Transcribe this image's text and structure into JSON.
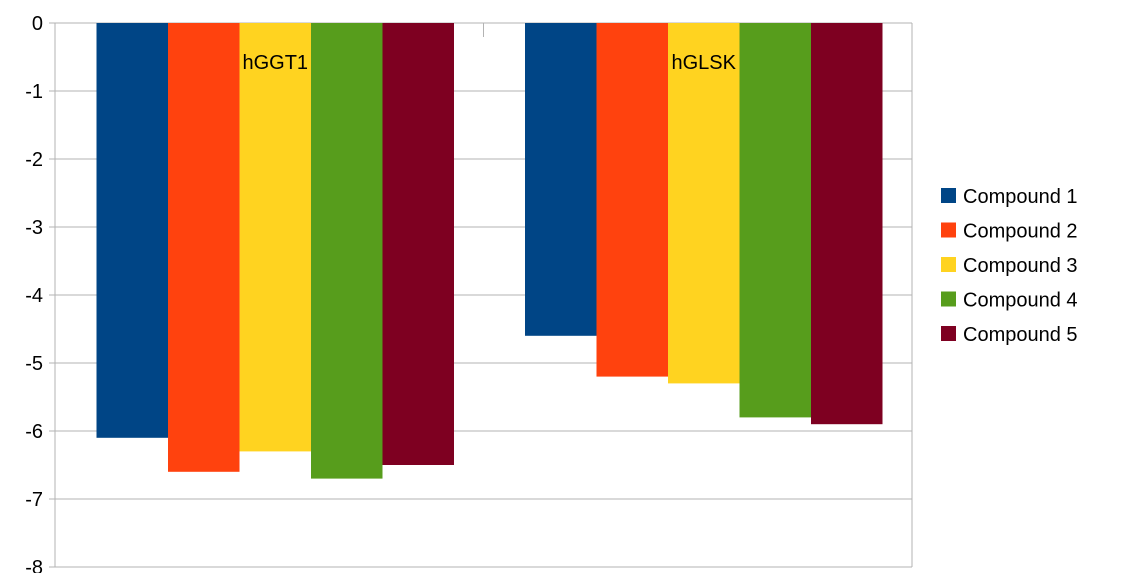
{
  "chart_data": {
    "type": "bar",
    "categories": [
      "hGGT1",
      "hGLSK"
    ],
    "series": [
      {
        "name": "Compound 1",
        "color": "#004586",
        "values": [
          -6.1,
          -4.6
        ]
      },
      {
        "name": "Compound 2",
        "color": "#ff420e",
        "values": [
          -6.6,
          -5.2
        ]
      },
      {
        "name": "Compound 3",
        "color": "#ffd320",
        "values": [
          -6.3,
          -5.3
        ]
      },
      {
        "name": "Compound 4",
        "color": "#579d1c",
        "values": [
          -6.7,
          -5.8
        ]
      },
      {
        "name": "Compound 5",
        "color": "#7e0021",
        "values": [
          -6.5,
          -5.9
        ]
      }
    ],
    "ylim": [
      -8,
      0
    ],
    "yticks": [
      0,
      -1,
      -2,
      -3,
      -4,
      -5,
      -6,
      -7,
      -8
    ],
    "grid": true,
    "legend_position": "right",
    "category_labels_position": "inside top of plot"
  }
}
